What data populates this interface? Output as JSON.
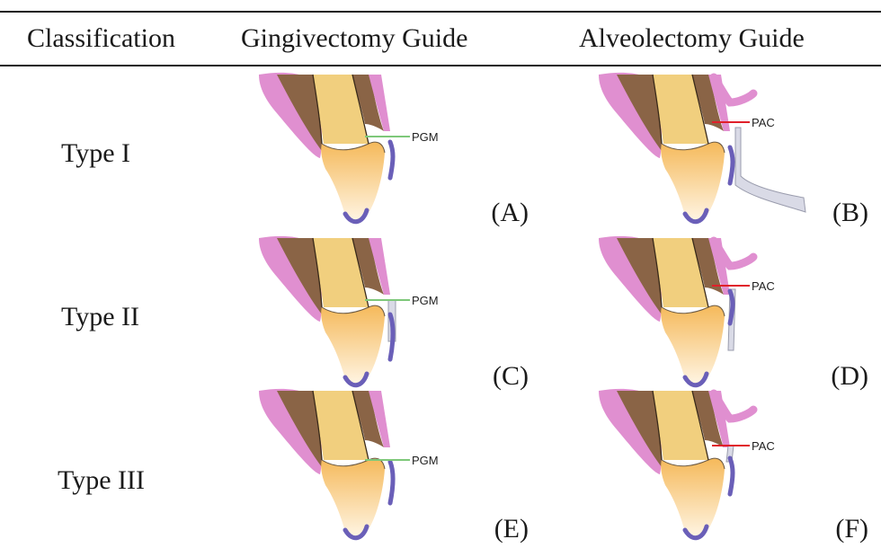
{
  "table": {
    "headers": [
      "Classification",
      "Gingivectomy Guide",
      "Alveolectomy Guide"
    ],
    "rows": [
      {
        "label": "Type I",
        "left_panel": "(A)",
        "right_panel": "(B)"
      },
      {
        "label": "Type II",
        "left_panel": "(C)",
        "right_panel": "(D)"
      },
      {
        "label": "Type III",
        "left_panel": "(E)",
        "right_panel": "(F)"
      }
    ]
  },
  "markers": {
    "gingival": "PGM",
    "alveolar": "PAC"
  },
  "colors": {
    "lip": "#e08fd0",
    "bone": "#8a6446",
    "enamel_top": "#f1cf7e",
    "crown_top": "#f5b95a",
    "crown_bottom": "#fff6e6",
    "gingiva": "#6a5fb8",
    "pgm_line": "#7ec87a",
    "pac_line": "#e0202a",
    "guide": "#d9dae6"
  }
}
